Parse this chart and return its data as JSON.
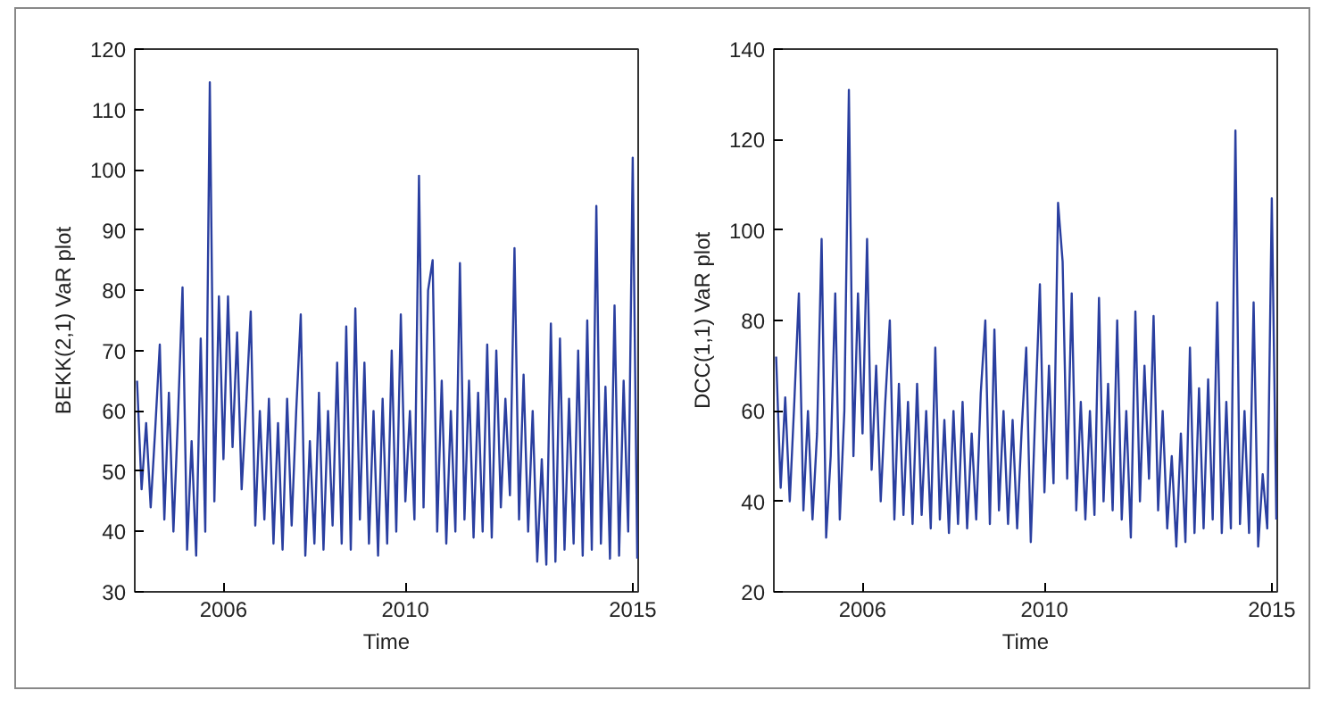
{
  "chart_data": [
    {
      "type": "line",
      "xlabel": "Time",
      "ylabel": "BEKK(2,1) VaR plot",
      "xlim": [
        2004.05,
        2015.12
      ],
      "xticks": [
        2006,
        2010,
        2015
      ],
      "ylim": [
        30,
        120
      ],
      "yticks": [
        30,
        40,
        50,
        60,
        70,
        80,
        90,
        100,
        110,
        120
      ],
      "grid": false,
      "x": [
        2004.1,
        2004.2,
        2004.3,
        2004.4,
        2004.5,
        2004.6,
        2004.7,
        2004.8,
        2004.9,
        2005.0,
        2005.1,
        2005.2,
        2005.3,
        2005.4,
        2005.5,
        2005.6,
        2005.7,
        2005.8,
        2005.9,
        2006.0,
        2006.1,
        2006.2,
        2006.3,
        2006.4,
        2006.5,
        2006.6,
        2006.7,
        2006.8,
        2006.9,
        2007.0,
        2007.1,
        2007.2,
        2007.3,
        2007.4,
        2007.5,
        2007.6,
        2007.7,
        2007.8,
        2007.9,
        2008.0,
        2008.1,
        2008.2,
        2008.3,
        2008.4,
        2008.5,
        2008.6,
        2008.7,
        2008.8,
        2008.9,
        2009.0,
        2009.1,
        2009.2,
        2009.3,
        2009.4,
        2009.5,
        2009.6,
        2009.7,
        2009.8,
        2009.9,
        2010.0,
        2010.1,
        2010.2,
        2010.3,
        2010.4,
        2010.5,
        2010.6,
        2010.7,
        2010.8,
        2010.9,
        2011.0,
        2011.1,
        2011.2,
        2011.3,
        2011.4,
        2011.5,
        2011.6,
        2011.7,
        2011.8,
        2011.9,
        2012.0,
        2012.1,
        2012.2,
        2012.3,
        2012.4,
        2012.5,
        2012.6,
        2012.7,
        2012.8,
        2012.9,
        2013.0,
        2013.1,
        2013.2,
        2013.3,
        2013.4,
        2013.5,
        2013.6,
        2013.7,
        2013.8,
        2013.9,
        2014.0,
        2014.1,
        2014.2,
        2014.3,
        2014.4,
        2014.5,
        2014.6,
        2014.7,
        2014.8,
        2014.9,
        2015.0,
        2015.1
      ],
      "series": [
        {
          "color": "#2a3fa0",
          "values": [
            65,
            47,
            58,
            44,
            57,
            71,
            42,
            63,
            40,
            59,
            80.5,
            37,
            55,
            36,
            72,
            40,
            114.5,
            45,
            79,
            52,
            79,
            54,
            73,
            47,
            61,
            76.5,
            41,
            60,
            42,
            62,
            38,
            58,
            37,
            62,
            41,
            60,
            76,
            36,
            55,
            38,
            63,
            37,
            60,
            41,
            68,
            38,
            74,
            37,
            77,
            42,
            68,
            38,
            60,
            36,
            62,
            38,
            70,
            40,
            76,
            45,
            60,
            42,
            99,
            44,
            80,
            85,
            40,
            65,
            38,
            60,
            40,
            84.5,
            42,
            65,
            39,
            63,
            40,
            71,
            39,
            70,
            44,
            62,
            46,
            87,
            42,
            66,
            40,
            60,
            35,
            52,
            34.5,
            74.5,
            35,
            72,
            37,
            62,
            38,
            70,
            36,
            75,
            37,
            94,
            38,
            64,
            35.5,
            77.5,
            36,
            65,
            40,
            102,
            35.5
          ]
        }
      ]
    },
    {
      "type": "line",
      "xlabel": "Time",
      "ylabel": "DCC(1,1) VaR plot",
      "xlim": [
        2004.05,
        2015.12
      ],
      "xticks": [
        2006,
        2010,
        2015
      ],
      "ylim": [
        20,
        140
      ],
      "yticks": [
        20,
        40,
        60,
        80,
        100,
        120,
        140
      ],
      "grid": false,
      "x": [
        2004.1,
        2004.2,
        2004.3,
        2004.4,
        2004.5,
        2004.6,
        2004.7,
        2004.8,
        2004.9,
        2005.0,
        2005.1,
        2005.2,
        2005.3,
        2005.4,
        2005.5,
        2005.6,
        2005.7,
        2005.8,
        2005.9,
        2006.0,
        2006.1,
        2006.2,
        2006.3,
        2006.4,
        2006.5,
        2006.6,
        2006.7,
        2006.8,
        2006.9,
        2007.0,
        2007.1,
        2007.2,
        2007.3,
        2007.4,
        2007.5,
        2007.6,
        2007.7,
        2007.8,
        2007.9,
        2008.0,
        2008.1,
        2008.2,
        2008.3,
        2008.4,
        2008.5,
        2008.6,
        2008.7,
        2008.8,
        2008.9,
        2009.0,
        2009.1,
        2009.2,
        2009.3,
        2009.4,
        2009.5,
        2009.6,
        2009.7,
        2009.8,
        2009.9,
        2010.0,
        2010.1,
        2010.2,
        2010.3,
        2010.4,
        2010.5,
        2010.6,
        2010.7,
        2010.8,
        2010.9,
        2011.0,
        2011.1,
        2011.2,
        2011.3,
        2011.4,
        2011.5,
        2011.6,
        2011.7,
        2011.8,
        2011.9,
        2012.0,
        2012.1,
        2012.2,
        2012.3,
        2012.4,
        2012.5,
        2012.6,
        2012.7,
        2012.8,
        2012.9,
        2013.0,
        2013.1,
        2013.2,
        2013.3,
        2013.4,
        2013.5,
        2013.6,
        2013.7,
        2013.8,
        2013.9,
        2014.0,
        2014.1,
        2014.2,
        2014.3,
        2014.4,
        2014.5,
        2014.6,
        2014.7,
        2014.8,
        2014.9,
        2015.0,
        2015.1
      ],
      "series": [
        {
          "color": "#2a3fa0",
          "values": [
            72,
            43,
            63,
            40,
            62,
            86,
            38,
            60,
            36,
            55,
            98,
            32,
            50,
            86,
            36,
            60,
            131,
            50,
            86,
            55,
            98,
            47,
            70,
            40,
            62,
            80,
            36,
            66,
            37,
            62,
            35,
            66,
            37,
            60,
            34,
            74,
            36,
            58,
            33,
            60,
            35,
            62,
            34,
            55,
            36,
            64,
            80,
            35,
            78,
            38,
            60,
            35,
            58,
            34,
            56,
            74,
            31,
            60,
            88,
            42,
            70,
            44,
            106,
            93,
            45,
            86,
            38,
            62,
            36,
            60,
            37,
            85,
            40,
            66,
            38,
            80,
            36,
            60,
            32,
            82,
            40,
            70,
            45,
            81,
            38,
            60,
            34,
            50,
            30,
            55,
            31,
            74,
            33,
            65,
            34,
            67,
            36,
            84,
            33,
            62,
            34,
            122,
            35,
            60,
            33,
            84,
            30,
            46,
            34,
            107,
            36
          ]
        }
      ]
    }
  ]
}
